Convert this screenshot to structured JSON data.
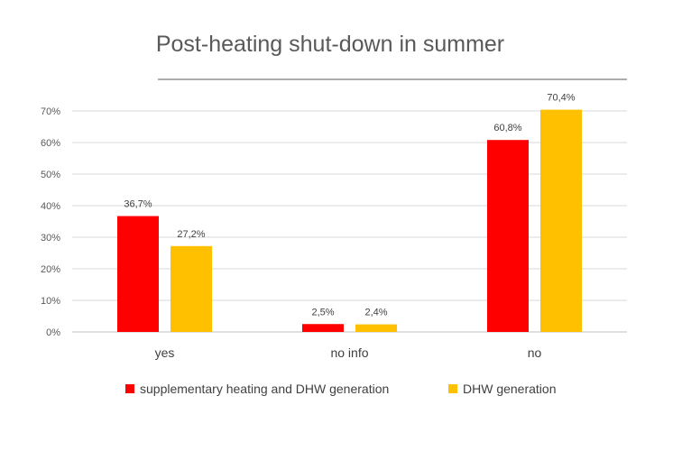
{
  "chart_data": {
    "type": "bar",
    "title": "Post-heating shut-down in summer",
    "categories": [
      "yes",
      "no info",
      "no"
    ],
    "series": [
      {
        "name": "supplementary heating and DHW generation",
        "color": "#ff0000",
        "values": [
          36.7,
          2.5,
          60.8
        ],
        "labels": [
          "36,7%",
          "2,5%",
          "60,8%"
        ]
      },
      {
        "name": "DHW generation",
        "color": "#ffc000",
        "values": [
          27.2,
          2.4,
          70.4
        ],
        "labels": [
          "27,2%",
          "2,4%",
          "70,4%"
        ]
      }
    ],
    "ylim": [
      0,
      70
    ],
    "yticks": [
      0,
      10,
      20,
      30,
      40,
      50,
      60,
      70
    ],
    "ytick_labels": [
      "0%",
      "10%",
      "20%",
      "30%",
      "40%",
      "50%",
      "60%",
      "70%"
    ],
    "grid": true,
    "legend_position": "bottom",
    "xlabel": "",
    "ylabel": ""
  }
}
